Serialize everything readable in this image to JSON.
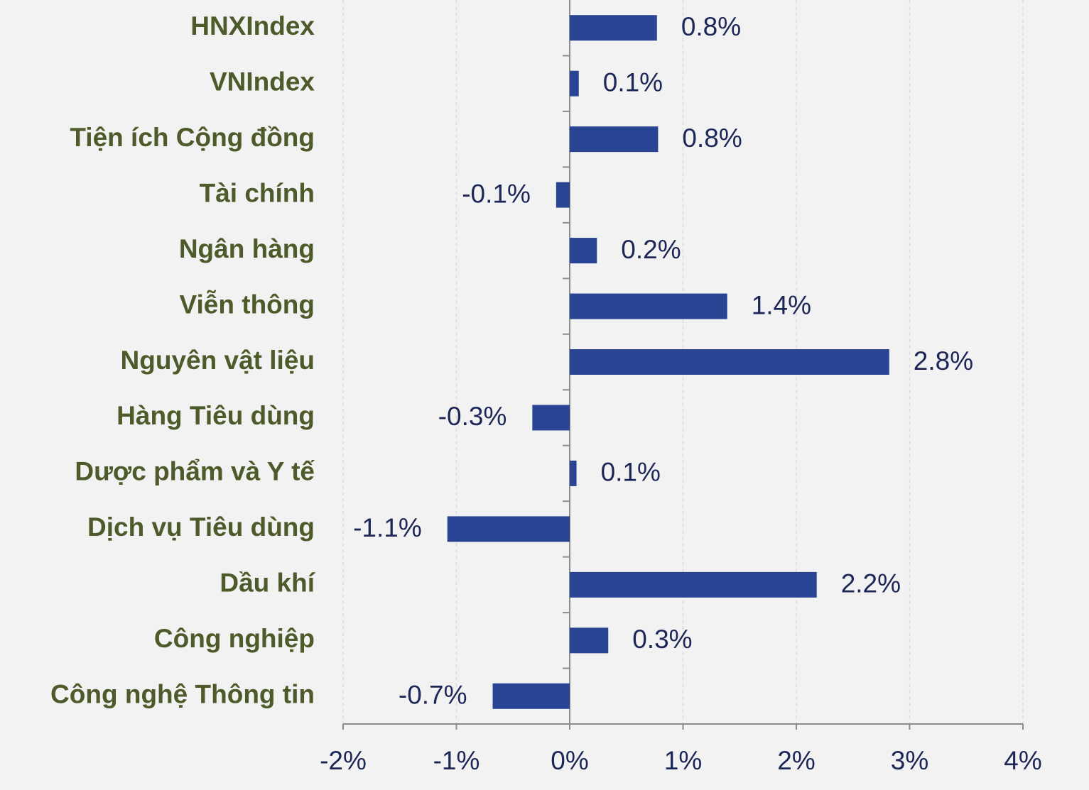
{
  "chart_data": {
    "type": "barh",
    "categories": [
      "HNXIndex",
      "VNIndex",
      "Tiện ích Cộng đồng",
      "Tài chính",
      "Ngân hàng",
      "Viễn thông",
      "Nguyên vật liệu",
      "Hàng Tiêu dùng",
      "Dược phẩm và Y tế",
      "Dịch vụ Tiêu dùng",
      "Dầu khí",
      "Công nghiệp",
      "Công nghệ Thông tin"
    ],
    "values": [
      0.77,
      0.08,
      0.78,
      -0.12,
      0.24,
      1.39,
      2.82,
      -0.33,
      0.06,
      -1.08,
      2.18,
      0.34,
      -0.68
    ],
    "value_labels": [
      "0.8%",
      "0.1%",
      "0.8%",
      "-0.1%",
      "0.2%",
      "1.4%",
      "2.8%",
      "-0.3%",
      "0.1%",
      "-1.1%",
      "2.2%",
      "0.3%",
      "-0.7%"
    ],
    "color": "#2a4494",
    "xlim": [
      -2,
      4
    ],
    "xticks": [
      {
        "value": -2,
        "label": "-2%"
      },
      {
        "value": -1,
        "label": "-1%"
      },
      {
        "value": 0,
        "label": "0%"
      },
      {
        "value": 1,
        "label": "1%"
      },
      {
        "value": 2,
        "label": "2%"
      },
      {
        "value": 3,
        "label": "3%"
      },
      {
        "value": 4,
        "label": "4%"
      }
    ],
    "grid": true
  }
}
